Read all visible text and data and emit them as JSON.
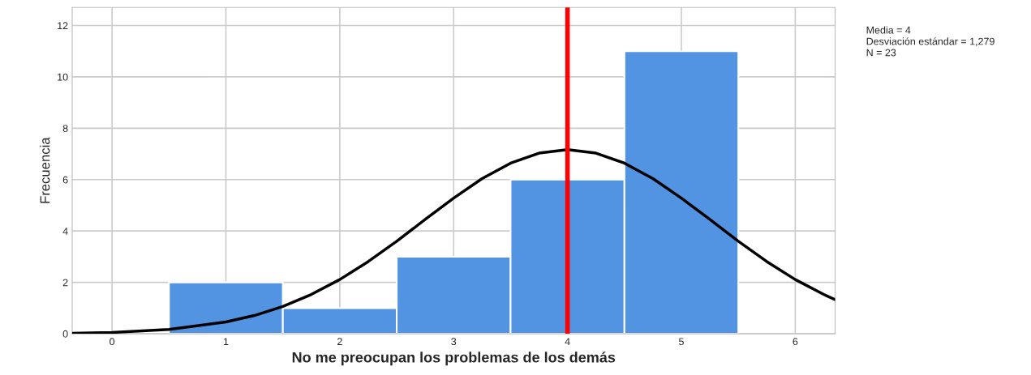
{
  "chart_data": {
    "type": "histogram",
    "xlabel": "No me preocupan los problemas de los demás",
    "ylabel": "Frecuencia",
    "bins": [
      0.5,
      1.5,
      2.5,
      3.5,
      4.5,
      5.5
    ],
    "values": [
      2,
      1,
      3,
      6,
      11
    ],
    "color": "#5294e2",
    "series": [
      {
        "type": "line",
        "color": "#000000",
        "x": [
          -0.35,
          0,
          0.5,
          1,
          1.25,
          1.5,
          1.75,
          2,
          2.25,
          2.5,
          2.75,
          3,
          3.25,
          3.5,
          3.75,
          4,
          4.25,
          4.5,
          4.75,
          5,
          5.25,
          5.5,
          5.75,
          6,
          6.25,
          6.35
        ],
        "values": [
          0.02,
          0.05,
          0.17,
          0.46,
          0.71,
          1.06,
          1.53,
          2.11,
          2.81,
          3.6,
          4.45,
          5.28,
          6.04,
          6.64,
          7.03,
          7.17,
          7.03,
          6.64,
          6.04,
          5.28,
          4.45,
          3.6,
          2.81,
          2.11,
          1.53,
          1.33
        ]
      }
    ],
    "ref_lines": [
      {
        "axis": "x",
        "value": 4,
        "color": "#ff0000"
      }
    ],
    "annotations": [
      "Media = 4",
      "Desviación estándar = 1,279",
      "N = 23"
    ],
    "xlim": [
      -0.35,
      6.35
    ],
    "xticks": [
      0,
      1,
      2,
      3,
      4,
      5,
      6
    ],
    "ylim": [
      0,
      12.7
    ],
    "yticks": [
      0,
      2,
      4,
      6,
      8,
      10,
      12
    ],
    "grid": true,
    "legend": false
  }
}
